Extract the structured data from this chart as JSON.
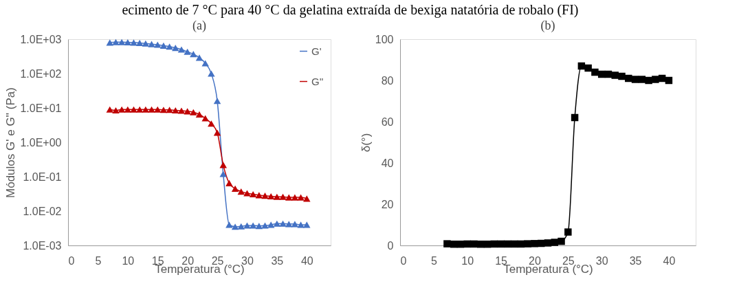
{
  "chart_data": [
    {
      "type": "line",
      "title": "(a)",
      "subtitle": "ecimento de 7 °C para 40 °C da gelatina extraída de bexiga natatória de robalo (FI)",
      "xlabel": "Temperatura (°C)",
      "ylabel": "Módulos G' e G'' (Pa)",
      "log": "y",
      "marker": "triangle",
      "line_style": "solid",
      "legend": "top right",
      "grid": false,
      "xlim": [
        0,
        44
      ],
      "xticks": [
        0,
        5,
        10,
        15,
        20,
        25,
        30,
        35,
        40
      ],
      "ylim": [
        0.001,
        1000
      ],
      "yticks": [
        {
          "value": 0.001,
          "label": "1.0E-03"
        },
        {
          "value": 0.01,
          "label": "1.0E-02"
        },
        {
          "value": 0.1,
          "label": "1.0E-01"
        },
        {
          "value": 1,
          "label": "1.0E+00"
        },
        {
          "value": 10,
          "label": "1.0E+01"
        },
        {
          "value": 100,
          "label": "1.0E+02"
        },
        {
          "value": 1000,
          "label": "1.0E+03"
        }
      ],
      "x": [
        7,
        8,
        9,
        10,
        11,
        12,
        13,
        14,
        15,
        16,
        17,
        18,
        19,
        20,
        21,
        22,
        23,
        24,
        25,
        26,
        27,
        28,
        29,
        30,
        31,
        32,
        33,
        34,
        35,
        36,
        37,
        38,
        39,
        40
      ],
      "series": [
        {
          "name": "G'",
          "color": "#4472c4",
          "values": [
            800,
            820,
            820,
            810,
            800,
            780,
            750,
            720,
            690,
            650,
            610,
            560,
            500,
            430,
            370,
            290,
            200,
            100,
            16,
            0.12,
            0.004,
            0.0035,
            0.0036,
            0.0038,
            0.0038,
            0.0037,
            0.0038,
            0.004,
            0.0043,
            0.0043,
            0.0042,
            0.0042,
            0.004,
            0.004
          ]
        },
        {
          "name": "G''",
          "color": "#c00000",
          "values": [
            9,
            8.5,
            9,
            9,
            9,
            9,
            9,
            9,
            9,
            8.8,
            8.8,
            8.5,
            8.3,
            8,
            7.5,
            6.5,
            5,
            3.5,
            1.9,
            0.22,
            0.065,
            0.045,
            0.037,
            0.033,
            0.031,
            0.029,
            0.028,
            0.027,
            0.026,
            0.026,
            0.025,
            0.025,
            0.025,
            0.023
          ]
        }
      ]
    },
    {
      "type": "line",
      "title": "(b)",
      "xlabel": "Temperatura (°C)",
      "ylabel": "δ(°)",
      "marker": "square",
      "line_style": "solid",
      "grid": false,
      "xlim": [
        0,
        44
      ],
      "xticks": [
        0,
        5,
        10,
        15,
        20,
        25,
        30,
        35,
        40
      ],
      "ylim": [
        0,
        100
      ],
      "yticks": [
        0,
        20,
        40,
        60,
        80,
        100
      ],
      "x": [
        7,
        8,
        9,
        10,
        11,
        12,
        13,
        14,
        15,
        16,
        17,
        18,
        19,
        20,
        21,
        22,
        23,
        24,
        25,
        26,
        27,
        28,
        29,
        30,
        31,
        32,
        33,
        34,
        35,
        36,
        37,
        38,
        39,
        40
      ],
      "series": [
        {
          "color": "#000000",
          "values": [
            0.8,
            0.6,
            0.6,
            0.7,
            0.7,
            0.6,
            0.6,
            0.7,
            0.7,
            0.7,
            0.7,
            0.7,
            0.8,
            0.9,
            1,
            1.2,
            1.5,
            2,
            6.5,
            62,
            87,
            86,
            84,
            83,
            83,
            82.5,
            82,
            81,
            80.5,
            80.5,
            80,
            80.5,
            81,
            80
          ]
        }
      ]
    }
  ]
}
